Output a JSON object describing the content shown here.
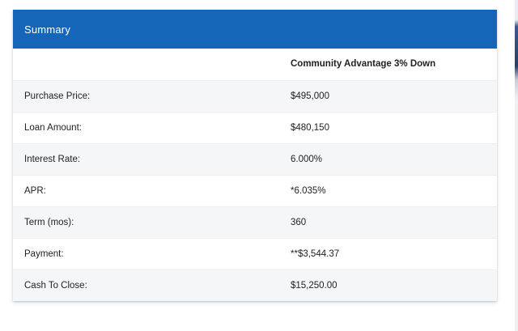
{
  "card": {
    "title": "Summary"
  },
  "table": {
    "column_header": "Community Advantage 3% Down",
    "rows": [
      {
        "label": "Purchase Price:",
        "value": "$495,000"
      },
      {
        "label": "Loan Amount:",
        "value": "$480,150"
      },
      {
        "label": "Interest Rate:",
        "value": "6.000%"
      },
      {
        "label": "APR:",
        "value": "*6.035%"
      },
      {
        "label": "Term (mos):",
        "value": "360"
      },
      {
        "label": "Payment:",
        "value": "**$3,544.37"
      },
      {
        "label": "Cash To Close:",
        "value": "$15,250.00"
      }
    ]
  },
  "colors": {
    "header_bg": "#1565b8",
    "header_text": "#ffffff",
    "stripe_bg": "#f5f6f8"
  }
}
